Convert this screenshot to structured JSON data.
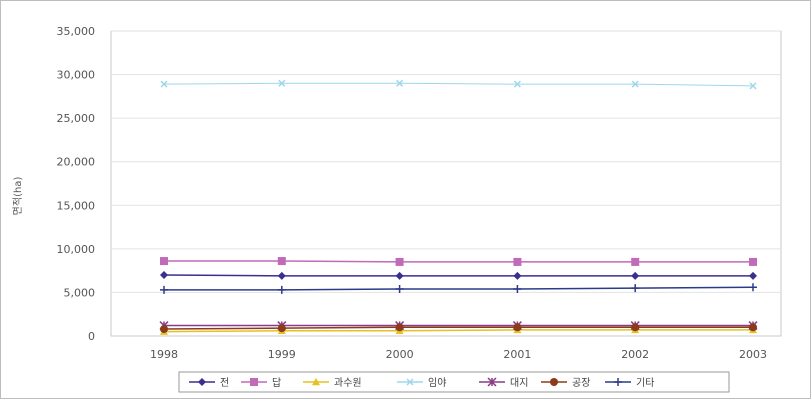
{
  "chart_data": {
    "type": "line",
    "title": "",
    "xlabel": "",
    "ylabel": "면적(ha)",
    "categories": [
      "1998",
      "1999",
      "2000",
      "2001",
      "2002",
      "2003"
    ],
    "ylim": [
      0,
      35000
    ],
    "yticks": [
      0,
      5000,
      10000,
      15000,
      20000,
      25000,
      30000,
      35000
    ],
    "ytick_labels": [
      "0",
      "5,000",
      "10,000",
      "15,000",
      "20,000",
      "25,000",
      "30,000",
      "35,000"
    ],
    "grid": true,
    "legend_position": "bottom",
    "series": [
      {
        "name": "전",
        "values": [
          7000,
          6900,
          6900,
          6900,
          6900,
          6900
        ],
        "color": "#3a2f8f",
        "marker": "diamond"
      },
      {
        "name": "답",
        "values": [
          8600,
          8600,
          8500,
          8500,
          8500,
          8500
        ],
        "color": "#c06ab8",
        "marker": "square"
      },
      {
        "name": "과수원",
        "values": [
          500,
          600,
          600,
          700,
          700,
          700
        ],
        "color": "#e8c020",
        "marker": "triangle"
      },
      {
        "name": "임야",
        "values": [
          28900,
          29000,
          29000,
          28900,
          28900,
          28700
        ],
        "color": "#9fd7ea",
        "marker": "x"
      },
      {
        "name": "대지",
        "values": [
          1200,
          1200,
          1200,
          1200,
          1200,
          1200
        ],
        "color": "#8a3c8a",
        "marker": "star"
      },
      {
        "name": "공장",
        "values": [
          800,
          900,
          1000,
          1000,
          1000,
          1000
        ],
        "color": "#8b3a1a",
        "marker": "circle"
      },
      {
        "name": "기타",
        "values": [
          5300,
          5300,
          5400,
          5400,
          5500,
          5600
        ],
        "color": "#2b3b8a",
        "marker": "plus"
      }
    ]
  }
}
